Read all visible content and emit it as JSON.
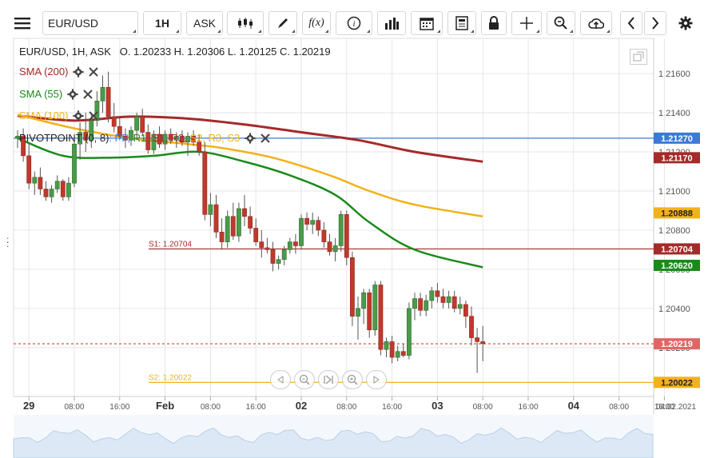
{
  "toolbar": {
    "menu_icon": "hamburger-icon",
    "symbol": "EUR/USD",
    "timeframe": "1H",
    "price_side": "ASK",
    "fx_label": "f(x)",
    "info_label": "i"
  },
  "legend": {
    "symbol_line": "EUR/USD, 1H, ASK",
    "open": "O. 1.20233",
    "high": "H. 1.20306",
    "low": "L. 1.20125",
    "close": "C. 1.20219"
  },
  "indicators": [
    {
      "label": "SMA (200)",
      "color": "#a52a2a"
    },
    {
      "label": "SMA (55)",
      "color": "#1a8a1a"
    },
    {
      "label": "SMA (100)",
      "color": "#f2b21b"
    }
  ],
  "pivot": {
    "label": "PIVOTPOINT (0, 8)",
    "parts": [
      {
        "text": ": PP,",
        "color": "#3a7bd5"
      },
      {
        "text": " R1,",
        "color": "#1a8a1a"
      },
      {
        "text": " S1,",
        "color": "#a52a2a"
      },
      {
        "text": " R2,",
        "color": "#a52a2a"
      },
      {
        "text": " S2,",
        "color": "#f2b21b"
      },
      {
        "text": " R3,",
        "color": "#f2b21b"
      },
      {
        "text": " S3",
        "color": "#f2b21b"
      }
    ]
  },
  "chart_data": {
    "type": "candlestick",
    "y_ticks": [
      "1.21600",
      "1.21400",
      "1.21200",
      "1.21000",
      "1.20800",
      "1.20600",
      "1.20400",
      "1.20200"
    ],
    "ylim": [
      1.1995,
      1.2178
    ],
    "x_ticks": [
      {
        "label": "29",
        "bold": true,
        "i": 2
      },
      {
        "label": "08:00",
        "bold": false,
        "i": 10
      },
      {
        "label": "16:00",
        "bold": false,
        "i": 18
      },
      {
        "label": "Feb",
        "bold": true,
        "i": 26
      },
      {
        "label": "08:00",
        "bold": false,
        "i": 34
      },
      {
        "label": "16:00",
        "bold": false,
        "i": 42
      },
      {
        "label": "02",
        "bold": true,
        "i": 50
      },
      {
        "label": "08:00",
        "bold": false,
        "i": 58
      },
      {
        "label": "16:00",
        "bold": false,
        "i": 66
      },
      {
        "label": "03",
        "bold": true,
        "i": 74
      },
      {
        "label": "08:00",
        "bold": false,
        "i": 82
      },
      {
        "label": "16:00",
        "bold": false,
        "i": 90
      },
      {
        "label": "04",
        "bold": true,
        "i": 98
      },
      {
        "label": "08:00",
        "bold": false,
        "i": 106
      },
      {
        "label": "16:00",
        "bold": false,
        "i": 114
      }
    ],
    "corner_date": "04.02.2021",
    "candles": [
      [
        1.2127,
        1.2131,
        1.2122,
        1.2128
      ],
      [
        1.2128,
        1.2132,
        1.2115,
        1.2118
      ],
      [
        1.2118,
        1.2124,
        1.2101,
        1.2104
      ],
      [
        1.2104,
        1.211,
        1.2098,
        1.2107
      ],
      [
        1.2107,
        1.2112,
        1.2098,
        1.2101
      ],
      [
        1.2101,
        1.2105,
        1.2095,
        1.2097
      ],
      [
        1.2097,
        1.2103,
        1.2094,
        1.2101
      ],
      [
        1.2101,
        1.2108,
        1.2099,
        1.2105
      ],
      [
        1.2105,
        1.2106,
        1.2095,
        1.2097
      ],
      [
        1.2097,
        1.2107,
        1.2095,
        1.2104
      ],
      [
        1.2104,
        1.2126,
        1.2102,
        1.2124
      ],
      [
        1.2124,
        1.2135,
        1.2116,
        1.213
      ],
      [
        1.213,
        1.214,
        1.212,
        1.2126
      ],
      [
        1.2126,
        1.214,
        1.2122,
        1.2136
      ],
      [
        1.2136,
        1.2151,
        1.2133,
        1.2146
      ],
      [
        1.2146,
        1.2159,
        1.214,
        1.2153
      ],
      [
        1.2153,
        1.2161,
        1.2135,
        1.2138
      ],
      [
        1.2138,
        1.2145,
        1.213,
        1.2133
      ],
      [
        1.2133,
        1.2138,
        1.2126,
        1.2128
      ],
      [
        1.2128,
        1.2132,
        1.2122,
        1.2126
      ],
      [
        1.2126,
        1.2133,
        1.2123,
        1.2131
      ],
      [
        1.2131,
        1.214,
        1.2126,
        1.2138
      ],
      [
        1.2138,
        1.2142,
        1.2128,
        1.213
      ],
      [
        1.213,
        1.2134,
        1.2119,
        1.2121
      ],
      [
        1.2121,
        1.2131,
        1.2119,
        1.2129
      ],
      [
        1.2129,
        1.2133,
        1.2122,
        1.2124
      ],
      [
        1.2124,
        1.2131,
        1.2121,
        1.2129
      ],
      [
        1.2129,
        1.2132,
        1.2124,
        1.2126
      ],
      [
        1.2126,
        1.213,
        1.2122,
        1.2128
      ],
      [
        1.2128,
        1.2131,
        1.2123,
        1.2125
      ],
      [
        1.2125,
        1.213,
        1.2118,
        1.2128
      ],
      [
        1.2128,
        1.2131,
        1.2123,
        1.2125
      ],
      [
        1.2125,
        1.2129,
        1.2118,
        1.212
      ],
      [
        1.212,
        1.2125,
        1.2085,
        1.2088
      ],
      [
        1.2088,
        1.2099,
        1.2082,
        1.2093
      ],
      [
        1.2093,
        1.2098,
        1.2076,
        1.2079
      ],
      [
        1.2079,
        1.2086,
        1.207,
        1.2074
      ],
      [
        1.2074,
        1.209,
        1.2071,
        1.2087
      ],
      [
        1.2087,
        1.2094,
        1.2075,
        1.2077
      ],
      [
        1.2077,
        1.2094,
        1.2074,
        1.2091
      ],
      [
        1.2091,
        1.2098,
        1.2082,
        1.2087
      ],
      [
        1.2087,
        1.2092,
        1.2078,
        1.2081
      ],
      [
        1.2081,
        1.2086,
        1.2072,
        1.2074
      ],
      [
        1.2074,
        1.208,
        1.2066,
        1.2071
      ],
      [
        1.2071,
        1.2076,
        1.2068,
        1.207
      ],
      [
        1.207,
        1.2074,
        1.2059,
        1.2063
      ],
      [
        1.2063,
        1.2067,
        1.206,
        1.2065
      ],
      [
        1.2065,
        1.2072,
        1.2062,
        1.207
      ],
      [
        1.207,
        1.2076,
        1.2068,
        1.2074
      ],
      [
        1.2074,
        1.2078,
        1.2068,
        1.2072
      ],
      [
        1.2072,
        1.2088,
        1.207,
        1.2086
      ],
      [
        1.2086,
        1.2089,
        1.208,
        1.2083
      ],
      [
        1.2083,
        1.2089,
        1.2078,
        1.2085
      ],
      [
        1.2085,
        1.2087,
        1.2077,
        1.208
      ],
      [
        1.208,
        1.2084,
        1.2071,
        1.2074
      ],
      [
        1.2074,
        1.2078,
        1.2067,
        1.2069
      ],
      [
        1.2069,
        1.2076,
        1.2064,
        1.2072
      ],
      [
        1.2072,
        1.209,
        1.2069,
        1.2088
      ],
      [
        1.2088,
        1.209,
        1.2062,
        1.2066
      ],
      [
        1.2066,
        1.2069,
        1.2031,
        1.2036
      ],
      [
        1.2036,
        1.2046,
        1.2024,
        1.204
      ],
      [
        1.204,
        1.205,
        1.2032,
        1.2048
      ],
      [
        1.2048,
        1.205,
        1.2025,
        1.2029
      ],
      [
        1.2029,
        1.2054,
        1.2026,
        1.2052
      ],
      [
        1.2052,
        1.2054,
        1.2016,
        1.2019
      ],
      [
        1.2019,
        1.2025,
        1.2015,
        1.2023
      ],
      [
        1.2023,
        1.2026,
        1.2012,
        1.2015
      ],
      [
        1.2015,
        1.2021,
        1.2013,
        1.2018
      ],
      [
        1.2018,
        1.2022,
        1.2015,
        1.2016
      ],
      [
        1.2016,
        1.2043,
        1.2014,
        1.204
      ],
      [
        1.204,
        1.2048,
        1.2034,
        1.2045
      ],
      [
        1.2045,
        1.2048,
        1.2036,
        1.2039
      ],
      [
        1.2039,
        1.2047,
        1.2036,
        1.2044
      ],
      [
        1.2044,
        1.2051,
        1.204,
        1.2049
      ],
      [
        1.2049,
        1.2053,
        1.2043,
        1.2046
      ],
      [
        1.2046,
        1.205,
        1.204,
        1.2043
      ],
      [
        1.2043,
        1.2049,
        1.204,
        1.2046
      ],
      [
        1.2046,
        1.2049,
        1.2038,
        1.204
      ],
      [
        1.204,
        1.2046,
        1.2037,
        1.2042
      ],
      [
        1.2042,
        1.2044,
        1.203,
        1.2036
      ],
      [
        1.2036,
        1.2041,
        1.2021,
        1.2025
      ],
      [
        1.2025,
        1.203,
        1.2007,
        1.2023
      ],
      [
        1.2023,
        1.2031,
        1.2013,
        1.2022
      ]
    ],
    "sma200": [
      [
        0,
        1.21385
      ],
      [
        10,
        1.2136
      ],
      [
        20,
        1.2138
      ],
      [
        30,
        1.2137
      ],
      [
        40,
        1.2134
      ],
      [
        50,
        1.213
      ],
      [
        60,
        1.2126
      ],
      [
        70,
        1.212
      ],
      [
        82,
        1.2115
      ]
    ],
    "sma100": [
      [
        0,
        1.2139
      ],
      [
        10,
        1.2132
      ],
      [
        20,
        1.2127
      ],
      [
        30,
        1.2124
      ],
      [
        36,
        1.2122
      ],
      [
        45,
        1.2117
      ],
      [
        55,
        1.2108
      ],
      [
        62,
        1.21
      ],
      [
        70,
        1.2093
      ],
      [
        82,
        1.2087
      ]
    ],
    "sma55": [
      [
        0,
        1.2127
      ],
      [
        8,
        1.2118
      ],
      [
        16,
        1.2117
      ],
      [
        24,
        1.2118
      ],
      [
        32,
        1.212
      ],
      [
        40,
        1.2115
      ],
      [
        48,
        1.2108
      ],
      [
        56,
        1.2098
      ],
      [
        62,
        1.2084
      ],
      [
        70,
        1.207
      ],
      [
        82,
        1.2061
      ]
    ],
    "horizontal_lines": [
      {
        "name": "PP",
        "value": 1.2127,
        "color": "#3a7bd5",
        "style": "solid",
        "label": ""
      },
      {
        "name": "S1",
        "value": 1.20704,
        "color": "#a52a2a",
        "style": "solid",
        "label": "S1: 1.20704"
      },
      {
        "name": "S2",
        "value": 1.20022,
        "color": "#f2b21b",
        "style": "solid",
        "label": "S2: 1.20022"
      },
      {
        "name": "last",
        "value": 1.20219,
        "color": "#d9534f",
        "style": "dashed",
        "label": ""
      }
    ],
    "price_tags": [
      {
        "text": "1.21270",
        "value": 1.2127,
        "bg": "#3a7bd5",
        "fg": "#ffffff"
      },
      {
        "text": "1.21170",
        "value": 1.2117,
        "bg": "#a52a2a",
        "fg": "#ffffff"
      },
      {
        "text": "1.20888",
        "value": 1.20888,
        "bg": "#f2b21b",
        "fg": "#222222"
      },
      {
        "text": "1.20704",
        "value": 1.20704,
        "bg": "#a52a2a",
        "fg": "#ffffff"
      },
      {
        "text": "1.20620",
        "value": 1.2062,
        "bg": "#1a8a1a",
        "fg": "#ffffff"
      },
      {
        "text": "1.20219",
        "value": 1.20219,
        "bg": "#e06666",
        "fg": "#ffffff"
      },
      {
        "text": "1.20022",
        "value": 1.20022,
        "bg": "#f2b21b",
        "fg": "#222222"
      }
    ],
    "colors": {
      "up": "#4a9a4a",
      "down": "#c0392b",
      "grid": "#e6e6e6"
    }
  }
}
